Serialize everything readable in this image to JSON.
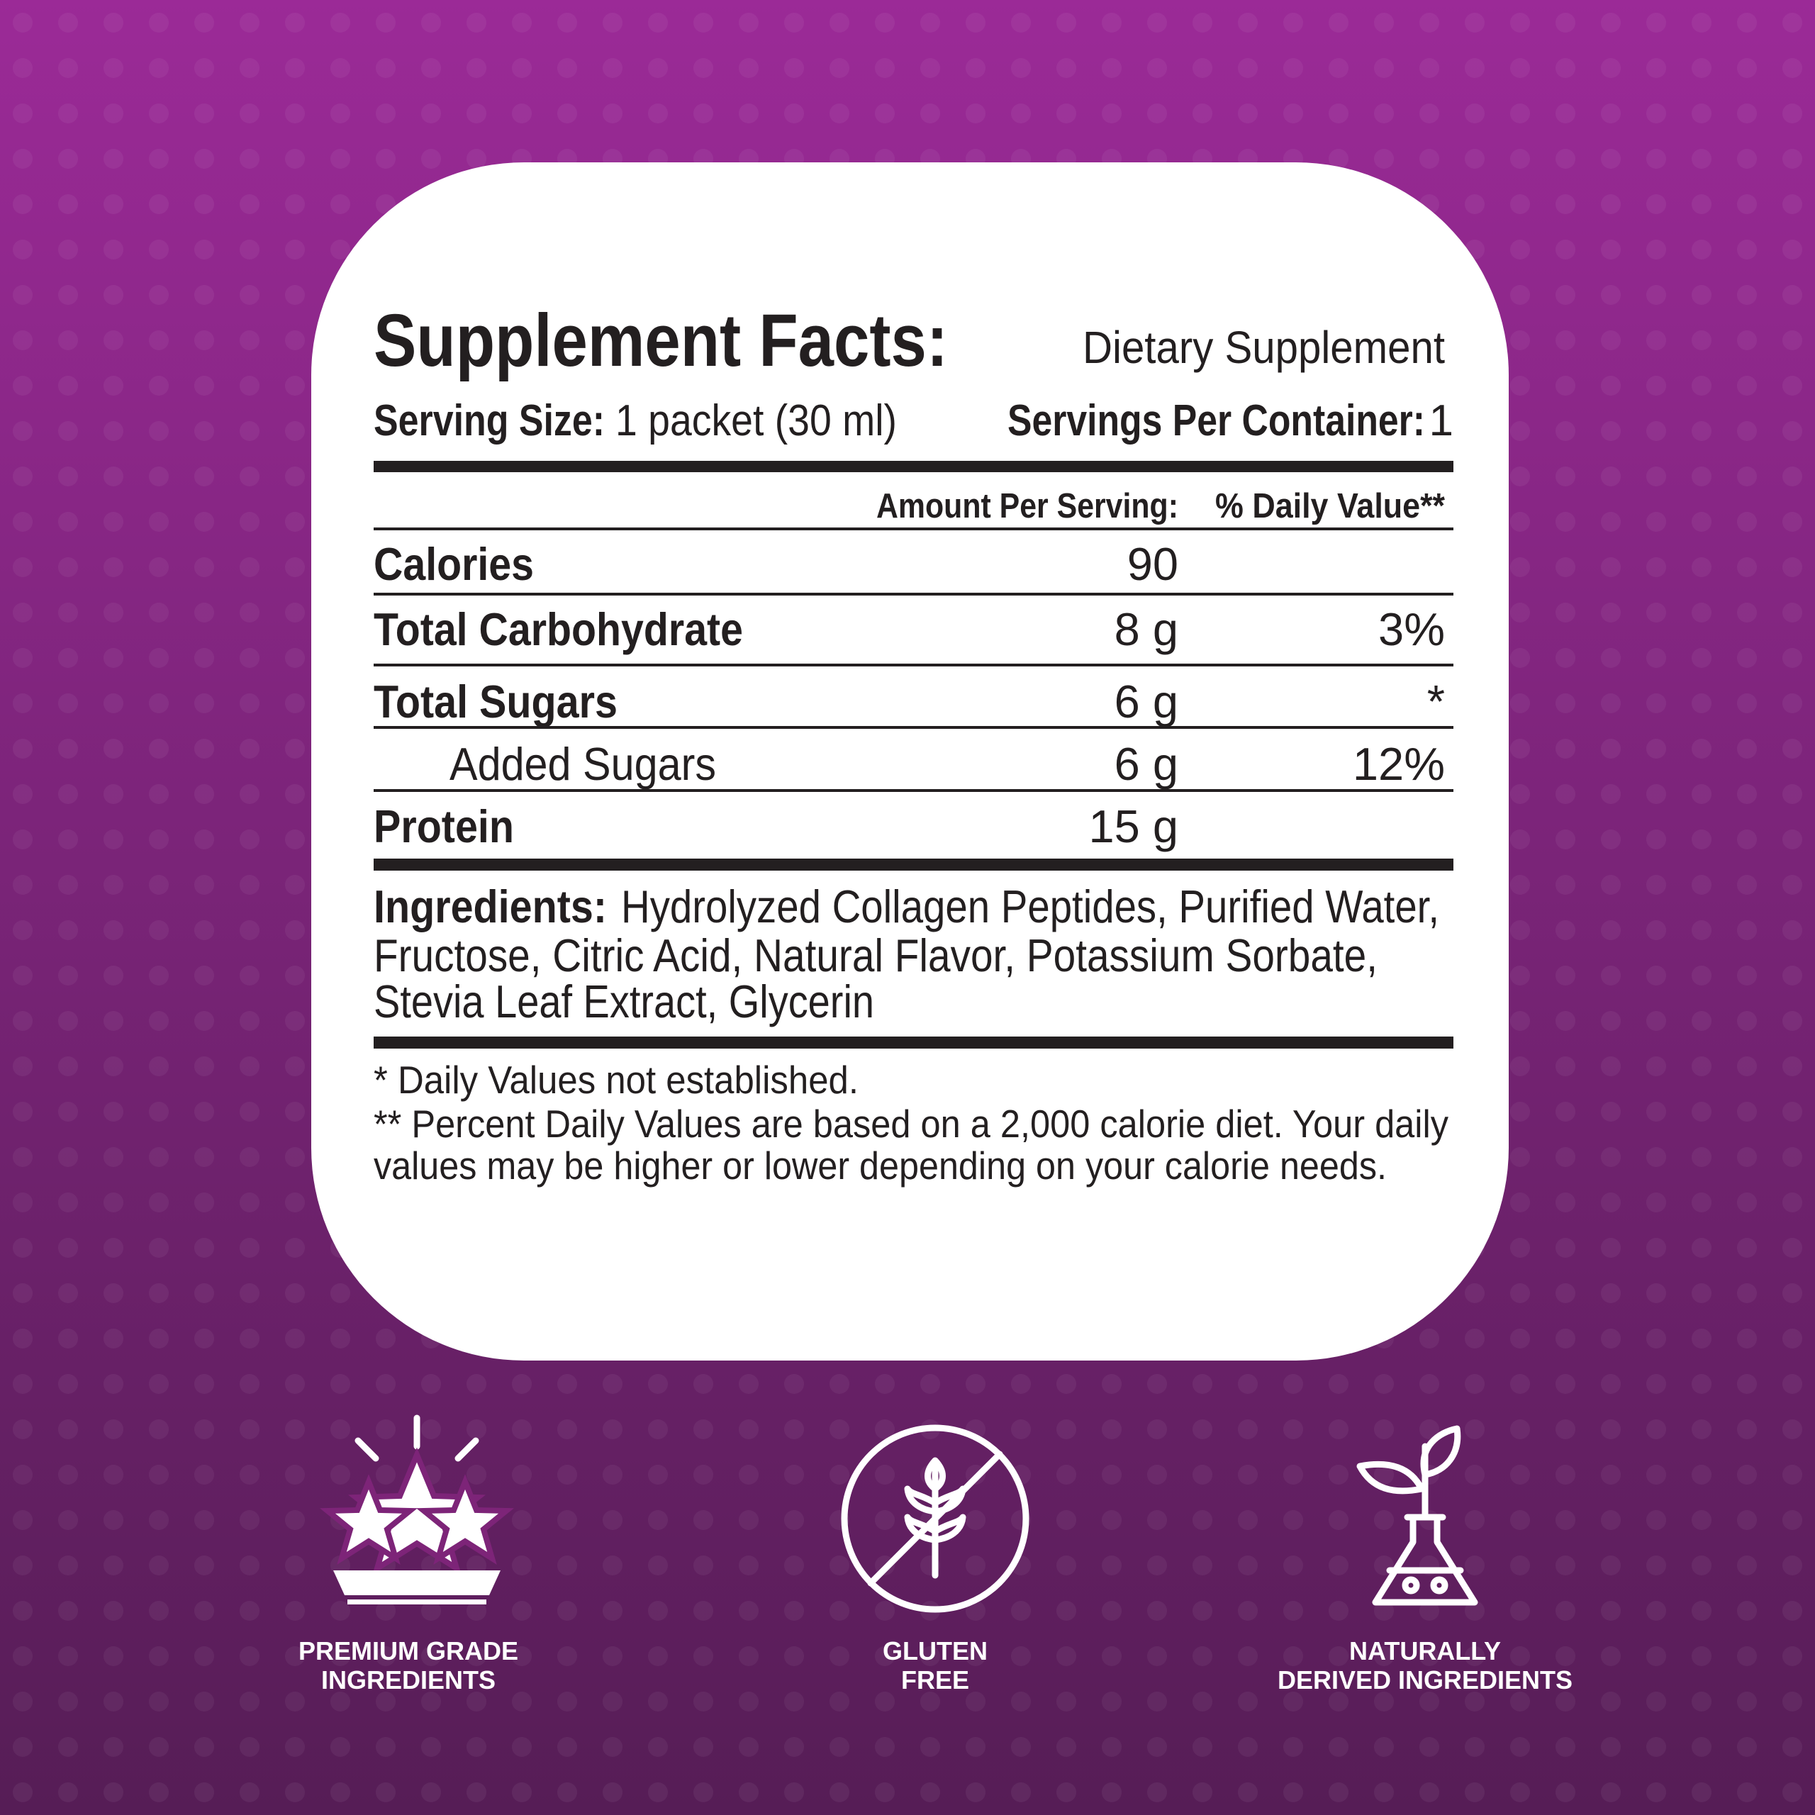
{
  "header": {
    "title": "Supplement Facts:",
    "subtitle": "Dietary Supplement"
  },
  "serving": {
    "size_label": "Serving Size:",
    "size_value": "1 packet (30 ml)",
    "per_container_label": "Servings Per Container:",
    "per_container_value": "1"
  },
  "table": {
    "columns": [
      "Amount Per Serving:",
      "% Daily Value**"
    ],
    "rows": [
      [
        "Calories",
        "90",
        null
      ],
      [
        "Total Carbohydrate",
        "8 g",
        "3%"
      ],
      [
        "Total Sugars",
        "6 g",
        "*"
      ],
      [
        "Added Sugars",
        "6 g",
        "12%"
      ],
      [
        "Protein",
        "15 g",
        null
      ]
    ]
  },
  "ingredients": {
    "label": "Ingredients:",
    "lines": [
      "Hydrolyzed Collagen Peptides, Purified Water,",
      "Fructose, Citric Acid, Natural Flavor, Potassium Sorbate,",
      "Stevia Leaf Extract, Glycerin"
    ]
  },
  "footnotes": [
    "* Daily Values not established.",
    "** Percent Daily Values are based on a 2,000 calorie diet. Your daily",
    "values may be higher or lower depending on your calorie needs."
  ],
  "badges": [
    {
      "lines": [
        "PREMIUM GRADE",
        "INGREDIENTS"
      ]
    },
    {
      "lines": [
        "GLUTEN",
        "FREE"
      ]
    },
    {
      "lines": [
        "NATURALLY",
        "DERIVED INGREDIENTS"
      ]
    }
  ]
}
